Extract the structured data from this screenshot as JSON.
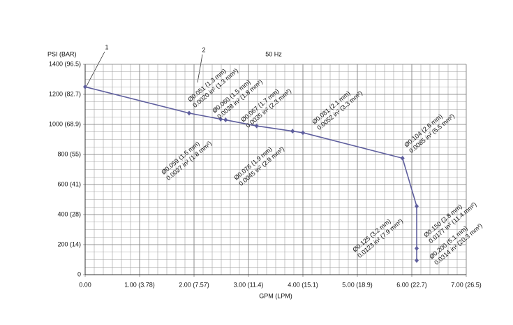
{
  "chart_data": {
    "type": "line",
    "title": "50 Hz",
    "x_label": "GPM (LPM)",
    "y_label": "PSI  (BAR)",
    "xlim": [
      0,
      7
    ],
    "ylim": [
      0,
      1400
    ],
    "xticks": [
      {
        "value": 0,
        "label": "0.00"
      },
      {
        "value": 1,
        "label": "1.00 (3.78)"
      },
      {
        "value": 2,
        "label": "2.00 (7.57)"
      },
      {
        "value": 3,
        "label": "3.00 (11.4)"
      },
      {
        "value": 4,
        "label": "4.00 (15.1)"
      },
      {
        "value": 5,
        "label": "5.00 (18.9)"
      },
      {
        "value": 6,
        "label": "6.00 (22.7)"
      },
      {
        "value": 7,
        "label": "7.00 (26.5)"
      }
    ],
    "yticks": [
      0,
      {
        "value": 200,
        "label": "200  (14)"
      },
      {
        "value": 400,
        "label": "400  (28)"
      },
      {
        "value": 600,
        "label": "600  (41)"
      },
      {
        "value": 800,
        "label": "800  (55)"
      },
      {
        "value": 1000,
        "label": "1000 (68.9)"
      },
      {
        "value": 1200,
        "label": "1200 (82.7)"
      },
      {
        "value": 1400,
        "label": "1400 (96.5)"
      }
    ],
    "grid": true,
    "x_minor_per_major": 6,
    "y_minor_per_major": 4,
    "series": [
      {
        "color": "#5f5f9e",
        "x": [
          0,
          1.91,
          2.49,
          2.58,
          3.15,
          3.81,
          4.0,
          5.83,
          6.09,
          6.09,
          6.09
        ],
        "values": [
          1250,
          1075,
          1035,
          1030,
          990,
          955,
          945,
          775,
          455,
          175,
          95
        ]
      }
    ],
    "callouts": [
      "1",
      "2"
    ],
    "annotations": [
      [
        "Ø0.051 (1.3 mm)",
        "0.0020 in² (1.3 mm²)"
      ],
      [
        "Ø0.060 (1.5 mm)",
        "0.0028 in² (1.8 mm²)"
      ],
      [
        "Ø0.067 (1.7 mm)",
        "0.0035 in² (2.3 mm²)"
      ],
      [
        "Ø0.081 (2.1 mm)",
        "0.0052 in² (3.3 mm²)"
      ],
      [
        "Ø0.104 (2.6 mm)",
        "0.0085 in² (5.5 mm²)"
      ],
      [
        "Ø0.059 (1.5 mm)",
        "0.0027 in² (1.8 mm²)"
      ],
      [
        "Ø0.076 (1.9 mm)",
        "0.0045 in² (2.9 mm²)"
      ],
      [
        "Ø0.125 (3.2 mm)",
        "0.0123 in² (7.9 mm²)"
      ],
      [
        "Ø0.150 (3.8 mm)",
        "0.0177 in² (11.4 mm²)"
      ],
      [
        "Ø0.200 (5.1 mm)",
        "0.0314 in² (20.3 mm²)"
      ]
    ]
  }
}
